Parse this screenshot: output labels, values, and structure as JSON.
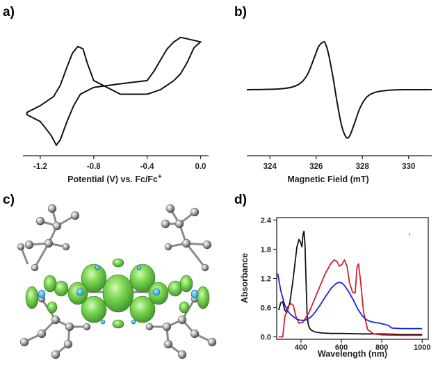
{
  "panel_labels": [
    "a)",
    "b)",
    "c)",
    "d)"
  ],
  "chart_data": [
    {
      "type": "line",
      "panel": "a)",
      "title": "",
      "xlabel": "Potential (V) vs. Fc/Fc",
      "xlabel_sup": "+",
      "ylabel": "",
      "xlim": [
        -1.33,
        0.06
      ],
      "ylim": [
        -1.3,
        1.3
      ],
      "xticks": [
        -1.2,
        -0.8,
        -0.4,
        0.0
      ],
      "xtick_labels": [
        "-1.2",
        "-0.8",
        "-0.4",
        "0.0"
      ],
      "grid": false,
      "series": [
        {
          "x": [
            -1.3,
            -1.2,
            -1.12,
            -1.08,
            -1.05,
            -1.0,
            -0.95,
            -0.9,
            -0.8,
            -0.6,
            -0.4,
            -0.35,
            -0.3,
            -0.25,
            -0.2,
            -0.15,
            -0.1,
            0.0,
            0.0,
            -0.05,
            -0.1,
            -0.15,
            -0.2,
            -0.25,
            -0.3,
            -0.35,
            -0.4,
            -0.6,
            -0.8,
            -0.85,
            -0.88,
            -0.92,
            -0.96,
            -1.0,
            -1.05,
            -1.1,
            -1.2,
            -1.3
          ],
          "y": [
            -0.55,
            -0.7,
            -1.0,
            -1.22,
            -1.1,
            -0.7,
            -0.35,
            -0.1,
            0.05,
            0.13,
            0.2,
            0.4,
            0.65,
            0.9,
            1.05,
            1.15,
            1.12,
            1.05,
            1.05,
            0.92,
            0.6,
            0.35,
            0.2,
            0.1,
            0.0,
            -0.05,
            -0.1,
            -0.1,
            0.2,
            0.6,
            0.9,
            0.95,
            0.8,
            0.5,
            0.1,
            -0.15,
            -0.35,
            -0.5
          ]
        }
      ]
    },
    {
      "type": "line",
      "panel": "b)",
      "title": "",
      "xlabel": "Magnetic Field (mT)",
      "ylabel": "",
      "xlim": [
        323.0,
        331.0
      ],
      "ylim": [
        -1.3,
        1.3
      ],
      "xticks": [
        324,
        326,
        328,
        330
      ],
      "xtick_labels": [
        "324",
        "326",
        "328",
        "330"
      ],
      "grid": false,
      "series": [
        {
          "x": [
            323.0,
            324.5,
            325.2,
            325.6,
            325.9,
            326.1,
            326.3,
            326.4,
            326.55,
            326.75,
            326.9,
            327.1,
            327.3,
            327.45,
            327.65,
            327.9,
            328.2,
            328.6,
            329.2,
            330.0,
            331.0
          ],
          "y": [
            0.0,
            0.02,
            0.1,
            0.3,
            0.65,
            0.9,
            1.0,
            0.97,
            0.72,
            0.2,
            -0.25,
            -0.75,
            -1.0,
            -0.97,
            -0.72,
            -0.38,
            -0.15,
            -0.05,
            -0.01,
            0.0,
            0.0
          ]
        }
      ]
    },
    {
      "type": "line",
      "panel": "d)",
      "title": "",
      "xlabel": "Wavelength (nm)",
      "ylabel": "Absorbance",
      "xlim": [
        280,
        1030
      ],
      "ylim": [
        -0.05,
        2.45
      ],
      "xticks": [
        400,
        600,
        800,
        1000
      ],
      "xtick_labels": [
        "400",
        "600",
        "800",
        "1000"
      ],
      "yticks": [
        0.0,
        0.6,
        1.2,
        1.8,
        2.4
      ],
      "ytick_labels": [
        "0.0",
        "0.6",
        "1.2",
        "1.8",
        "2.4"
      ],
      "grid": false,
      "series": [
        {
          "color": "#111111",
          "x": [
            290,
            300,
            310,
            320,
            330,
            345,
            360,
            370,
            380,
            390,
            398,
            405,
            410,
            415,
            420,
            425,
            430,
            435,
            440,
            450,
            470,
            500,
            550,
            600,
            700,
            800,
            900,
            1000
          ],
          "y": [
            0.55,
            0.7,
            0.72,
            0.55,
            0.5,
            0.7,
            1.15,
            1.5,
            1.85,
            2.0,
            1.95,
            1.85,
            2.1,
            2.17,
            1.9,
            1.2,
            0.5,
            0.28,
            0.2,
            0.14,
            0.1,
            0.08,
            0.07,
            0.07,
            0.06,
            0.06,
            0.05,
            0.05
          ]
        },
        {
          "color": "#d4202a",
          "x": [
            290,
            300,
            310,
            320,
            335,
            350,
            362,
            375,
            390,
            410,
            440,
            480,
            520,
            550,
            565,
            578,
            590,
            605,
            615,
            628,
            640,
            655,
            668,
            678,
            685,
            695,
            710,
            730,
            760,
            800,
            900,
            1000
          ],
          "y": [
            0.0,
            0.0,
            0.0,
            0.4,
            0.62,
            0.68,
            0.65,
            0.42,
            0.28,
            0.3,
            0.5,
            0.9,
            1.3,
            1.52,
            1.58,
            1.55,
            1.45,
            1.5,
            1.58,
            1.45,
            1.12,
            0.92,
            0.9,
            1.45,
            1.5,
            1.15,
            0.5,
            0.15,
            0.06,
            0.04,
            0.03,
            0.03
          ]
        },
        {
          "color": "#1a24e0",
          "x": [
            285,
            300,
            320,
            340,
            360,
            380,
            400,
            420,
            440,
            460,
            490,
            520,
            550,
            575,
            590,
            605,
            620,
            640,
            660,
            680,
            700,
            720,
            740,
            760,
            790,
            830,
            850,
            900,
            1000
          ],
          "y": [
            1.3,
            0.95,
            0.65,
            0.5,
            0.42,
            0.36,
            0.34,
            0.34,
            0.38,
            0.45,
            0.62,
            0.82,
            1.0,
            1.1,
            1.12,
            1.1,
            1.03,
            0.9,
            0.75,
            0.58,
            0.45,
            0.36,
            0.32,
            0.3,
            0.28,
            0.24,
            0.18,
            0.17,
            0.17
          ]
        }
      ]
    }
  ]
}
